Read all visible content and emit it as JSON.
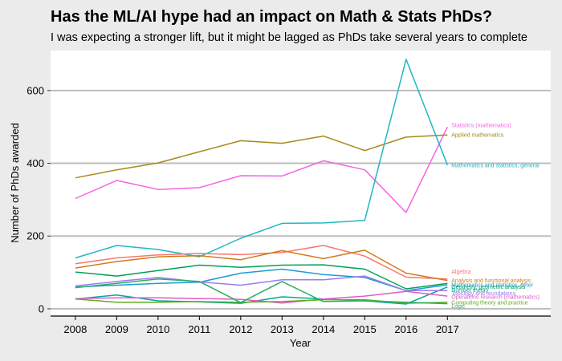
{
  "chart_data": {
    "type": "line",
    "title": "Has the ML/AI hype had an impact on Math & Stats PhDs?",
    "subtitle": "I was expecting a stronger lift, but it might be lagged as PhDs take several years to complete",
    "xlabel": "Year",
    "ylabel": "Number of PhDs awarded",
    "x": [
      2008,
      2009,
      2010,
      2011,
      2012,
      2013,
      2014,
      2015,
      2016,
      2017
    ],
    "xlim": [
      2007.4,
      2019.5
    ],
    "ylim": [
      -20,
      710
    ],
    "y_ticks": [
      0,
      200,
      400,
      600
    ],
    "grid": true,
    "legend": "direct labels at line ends",
    "series": [
      {
        "name": "Statistics (mathematics)",
        "color": "#F564E3",
        "label_y": 505,
        "values": [
          303,
          353,
          328,
          333,
          366,
          365,
          407,
          382,
          265,
          500
        ]
      },
      {
        "name": "Applied mathematics",
        "color": "#A58A1A",
        "label_y": 478,
        "values": [
          360,
          382,
          401,
          432,
          462,
          455,
          475,
          435,
          472,
          478
        ]
      },
      {
        "name": "Mathematics and statistics, general",
        "color": "#1FB8C3",
        "label_y": 395,
        "values": [
          140,
          174,
          163,
          143,
          194,
          235,
          236,
          243,
          686,
          395
        ]
      },
      {
        "name": "Algebra",
        "color": "#F8766D",
        "label_y": 102,
        "values": [
          124,
          140,
          148,
          152,
          149,
          155,
          174,
          145,
          87,
          82
        ]
      },
      {
        "name": "Analysis and functional analysis",
        "color": "#D07C1A",
        "label_y": 78,
        "values": [
          112,
          130,
          143,
          146,
          135,
          160,
          138,
          161,
          98,
          78
        ]
      },
      {
        "name": "Mathematics and statistics, other",
        "color": "#1D9BD5",
        "label_y": 66,
        "values": [
          60,
          65,
          70,
          73,
          98,
          109,
          94,
          86,
          50,
          66
        ]
      },
      {
        "name": "Geometry, geometric analysis",
        "color": "#00A15A",
        "label_y": 60,
        "values": [
          101,
          90,
          105,
          120,
          114,
          120,
          121,
          109,
          55,
          70
        ]
      },
      {
        "name": "Number theory",
        "color": "#00A8A0",
        "label_y": 52,
        "values": [
          27,
          38,
          22,
          19,
          15,
          33,
          27,
          22,
          13,
          60
        ]
      },
      {
        "name": "Topology and foundations",
        "color": "#9B7DE8",
        "label_y": 43,
        "values": [
          63,
          75,
          86,
          74,
          65,
          80,
          80,
          90,
          50,
          50
        ]
      },
      {
        "name": "Operations research (mathematics)",
        "color": "#E25BC9",
        "label_y": 33,
        "values": [
          28,
          30,
          30,
          28,
          26,
          16,
          27,
          35,
          48,
          35
        ]
      },
      {
        "name": "Computing theory and practice",
        "color": "#5FAE1E",
        "label_y": 18,
        "values": [
          27,
          18,
          18,
          20,
          18,
          20,
          25,
          25,
          15,
          18
        ]
      },
      {
        "name": "Logic",
        "color": "#2BAE63",
        "label_y": 8,
        "values": [
          58,
          70,
          82,
          75,
          17,
          75,
          20,
          22,
          18,
          14
        ]
      }
    ]
  }
}
